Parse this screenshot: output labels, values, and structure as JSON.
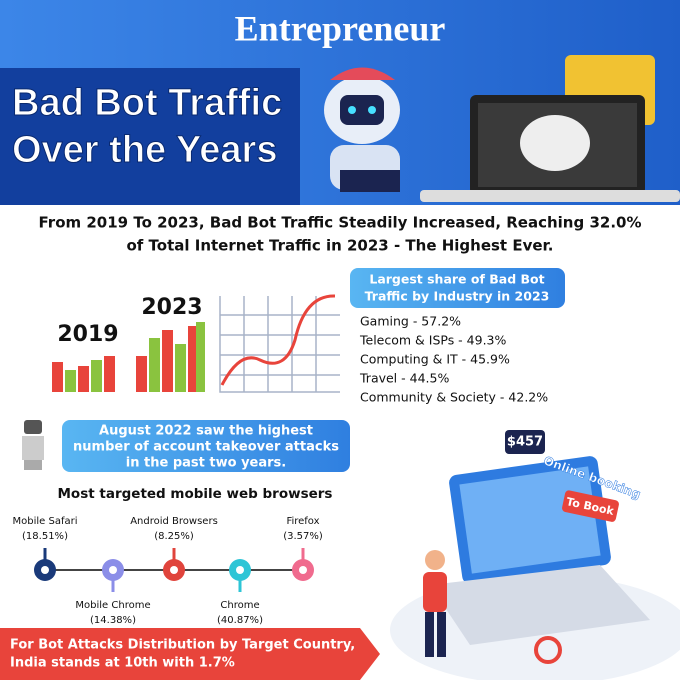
{
  "brand": "Entrepreneur",
  "title": [
    "Bad Bot Traffic",
    "Over the Years"
  ],
  "headline": [
    "From 2019 To 2023, Bad Bot Traffic Steadily Increased, Reaching 32.0%",
    "of Total Internet Traffic in 2023 - The Highest Ever."
  ],
  "years": [
    "2019",
    "2023"
  ],
  "industry": {
    "title": [
      "Largest share of Bad Bot",
      "Traffic by Industry in 2023"
    ],
    "items": [
      "Gaming - 57.2%",
      "Telecom & ISPs - 49.3%",
      "Computing & IT - 45.9%",
      "Travel - 44.5%",
      "Community & Society - 42.2%"
    ]
  },
  "callout": [
    "August 2022 saw the highest",
    "number of account takeover attacks",
    "in the past two years."
  ],
  "browsers": {
    "title": "Most targeted mobile web browsers",
    "items": [
      {
        "name": "Mobile Safari",
        "share": "(18.51%)"
      },
      {
        "name": "Mobile Chrome",
        "share": "(14.38%)"
      },
      {
        "name": "Android Browsers",
        "share": "(8.25%)"
      },
      {
        "name": "Chrome",
        "share": "(40.87%)"
      },
      {
        "name": "Firefox",
        "share": "(3.57%)"
      }
    ]
  },
  "illustration": {
    "price": "$457",
    "booking": "Online booking",
    "button": "To Book"
  },
  "footer": [
    "For Bot Attacks Distribution by Target Country,",
    "India stands at 10th with 1.7%"
  ]
}
